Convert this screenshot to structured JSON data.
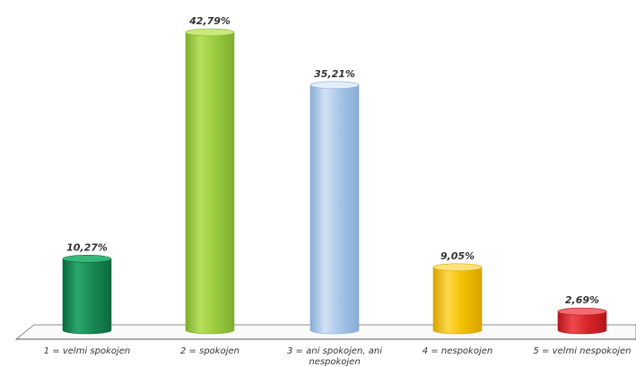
{
  "chart_data": {
    "type": "bar",
    "categories": [
      [
        "1 = velmi spokojen"
      ],
      [
        "2 = spokojen"
      ],
      [
        "3 = ani spokojen, ani",
        "nespokojen"
      ],
      [
        "4 = nespokojen"
      ],
      [
        "5 = velmi nespokojen"
      ]
    ],
    "values": [
      10.27,
      42.79,
      35.21,
      9.05,
      2.69
    ],
    "data_labels": [
      "10,27%",
      "42,79%",
      "35,21%",
      "9,05%",
      "2,69%"
    ],
    "ylim": [
      0,
      45
    ],
    "grid": false,
    "legend": "none",
    "colors": {
      "bars": [
        {
          "dark": "#0b6a3e",
          "mid": "#1a8a55",
          "light": "#2aa76b",
          "top": "#37b879"
        },
        {
          "dark": "#7fae2e",
          "mid": "#9bcb3e",
          "light": "#b6df5c",
          "top": "#c9ea7a"
        },
        {
          "dark": "#86acd6",
          "mid": "#a8c6e8",
          "light": "#d2e2f4",
          "top": "#e4eef9"
        },
        {
          "dark": "#d8a400",
          "mid": "#f2c100",
          "light": "#ffd84a",
          "top": "#ffe27a"
        },
        {
          "dark": "#b3161a",
          "mid": "#d8262b",
          "light": "#ee4a4e",
          "top": "#f26b6f"
        }
      ],
      "axis": "#555555",
      "text": "#333333"
    }
  }
}
